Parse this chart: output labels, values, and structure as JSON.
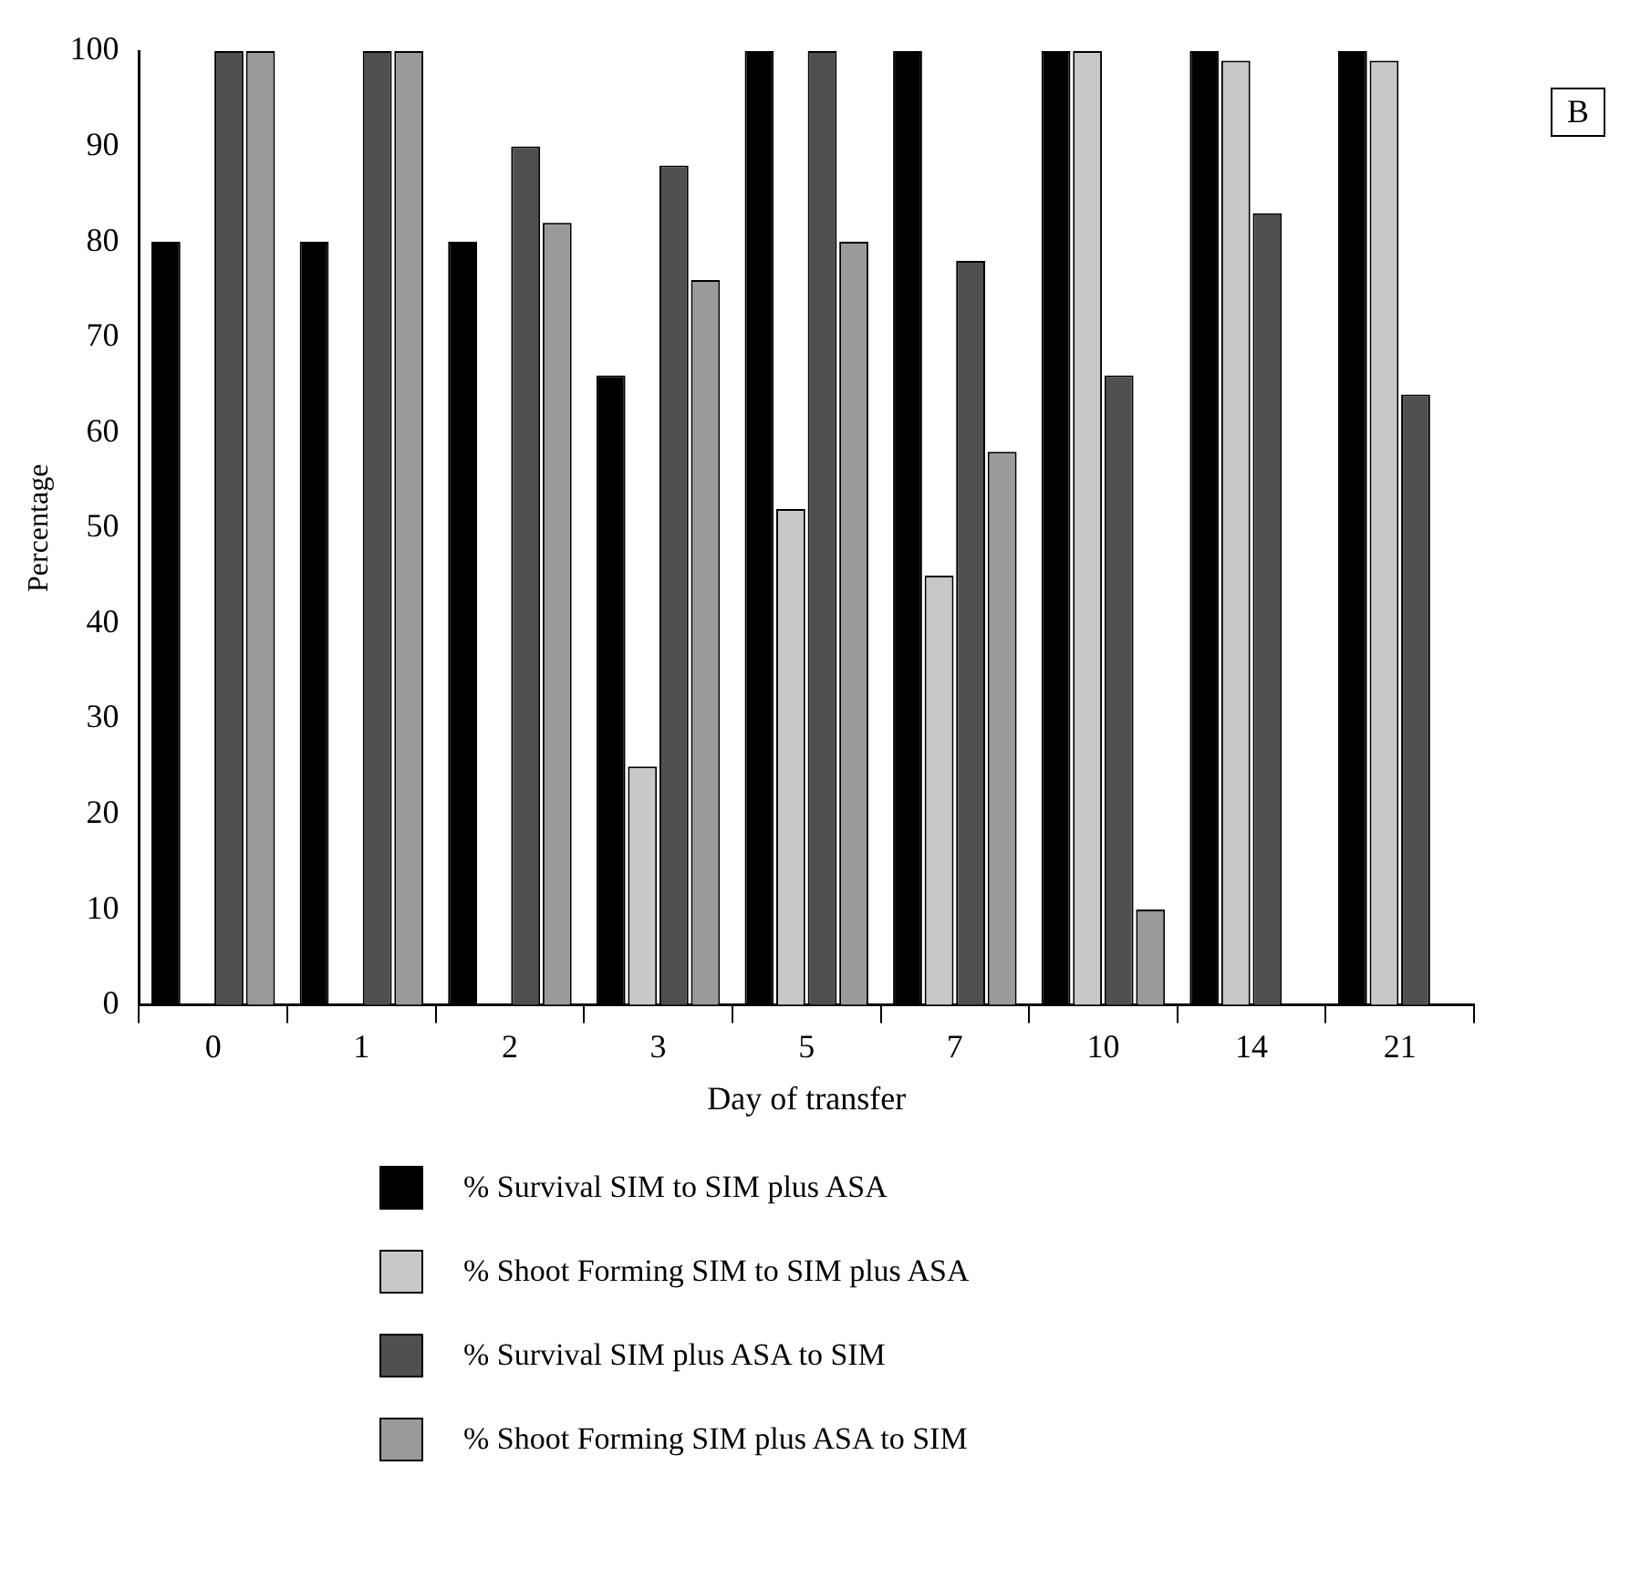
{
  "chart_data": {
    "type": "bar",
    "xlabel": "Day of transfer",
    "ylabel": "Percentage",
    "categories": [
      "0",
      "1",
      "2",
      "3",
      "5",
      "7",
      "10",
      "14",
      "21"
    ],
    "series": [
      {
        "name": "% Survival  SIM to SIM plus ASA",
        "color": "#000000",
        "values": [
          80,
          80,
          80,
          66,
          100,
          100,
          100,
          100,
          100
        ]
      },
      {
        "name": "% Shoot Forming  SIM to SIM plus ASA",
        "color": "#c8c8c8",
        "values": [
          0,
          0,
          0,
          25,
          52,
          45,
          100,
          99,
          99
        ]
      },
      {
        "name": "% Survival  SIM plus ASA to SIM",
        "color": "#505050",
        "values": [
          100,
          100,
          90,
          88,
          100,
          78,
          66,
          83,
          64
        ]
      },
      {
        "name": "% Shoot Forming  SIM plus ASA to SIM",
        "color": "#9a9a9a",
        "values": [
          100,
          100,
          82,
          76,
          80,
          58,
          10,
          0,
          0
        ]
      }
    ],
    "ylim": [
      0,
      100
    ],
    "yticks": [
      0,
      10,
      20,
      30,
      40,
      50,
      60,
      70,
      80,
      90,
      100
    ],
    "grid": false,
    "legend": "bottom",
    "annotations": [
      "B"
    ]
  }
}
